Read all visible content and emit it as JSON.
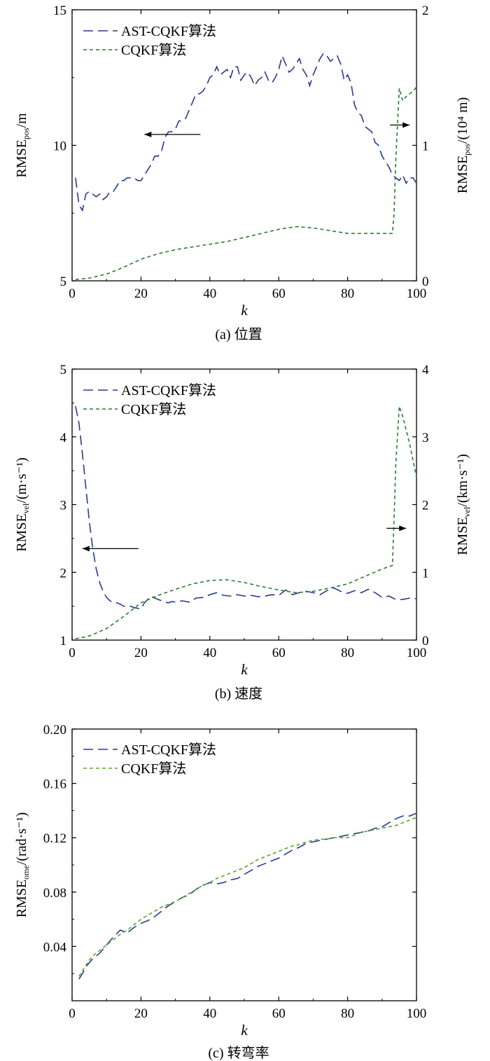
{
  "chart_data": [
    {
      "id": "a",
      "type": "line",
      "caption": "(a) 位置",
      "xlabel": "k",
      "xlim": [
        0,
        100
      ],
      "xticks": [
        0,
        20,
        40,
        60,
        80,
        100
      ],
      "y_left": {
        "label_main": "RMSE",
        "label_sub": "pos",
        "label_tail": "/m",
        "lim": [
          5,
          15
        ],
        "ticks": [
          5,
          10,
          15
        ]
      },
      "y_right": {
        "label_main": "RMSE",
        "label_sub": "pos",
        "label_tail": "/(10⁴ m)",
        "lim": [
          0,
          2
        ],
        "ticks": [
          0,
          1,
          2
        ]
      },
      "legend": [
        "AST-CQKF算法",
        "CQKF算法"
      ],
      "series": [
        {
          "name": "AST-CQKF算法",
          "axis": "left",
          "color": "#2b3990",
          "dash": "14,7",
          "x": [
            1,
            2,
            3,
            4,
            5,
            6,
            7,
            8,
            9,
            10,
            11,
            12,
            13,
            14,
            15,
            16,
            17,
            18,
            19,
            20,
            21,
            22,
            23,
            24,
            25,
            26,
            27,
            28,
            29,
            30,
            31,
            32,
            33,
            34,
            35,
            36,
            37,
            38,
            39,
            40,
            41,
            42,
            43,
            44,
            45,
            46,
            47,
            48,
            49,
            50,
            51,
            52,
            53,
            54,
            55,
            56,
            57,
            58,
            59,
            60,
            61,
            62,
            63,
            64,
            65,
            66,
            67,
            68,
            69,
            70,
            71,
            72,
            73,
            74,
            75,
            76,
            77,
            78,
            79,
            80,
            81,
            82,
            83,
            84,
            85,
            86,
            87,
            88,
            89,
            90,
            91,
            92,
            93,
            94,
            95,
            96,
            97,
            98,
            99,
            100
          ],
          "values": [
            8.8,
            7.8,
            7.6,
            8.2,
            8.3,
            8.2,
            8.1,
            8.2,
            8.0,
            8.1,
            8.3,
            8.3,
            8.5,
            8.7,
            8.7,
            8.8,
            8.8,
            8.8,
            8.7,
            8.7,
            8.9,
            9.1,
            9.3,
            9.6,
            9.6,
            9.8,
            10.3,
            10.5,
            10.5,
            10.6,
            10.9,
            10.9,
            11.0,
            11.3,
            11.6,
            11.9,
            11.9,
            12.0,
            12.2,
            12.5,
            12.6,
            12.9,
            12.6,
            12.7,
            12.8,
            12.5,
            12.9,
            12.9,
            12.4,
            12.6,
            12.7,
            12.5,
            12.2,
            12.4,
            12.5,
            12.7,
            12.4,
            12.3,
            12.5,
            12.8,
            13.3,
            13.0,
            12.7,
            12.8,
            13.0,
            13.2,
            12.8,
            12.6,
            12.2,
            12.6,
            12.9,
            13.2,
            13.4,
            13.3,
            13.1,
            13.2,
            13.3,
            13.0,
            12.4,
            12.6,
            12.3,
            11.5,
            11.2,
            11.1,
            10.7,
            10.6,
            10.5,
            10.1,
            10.0,
            9.6,
            9.4,
            9.2,
            8.9,
            8.8,
            8.7,
            8.9,
            8.6,
            8.8,
            8.8,
            8.6
          ]
        },
        {
          "name": "CQKF算法",
          "axis": "right",
          "color": "#2e7d32",
          "dash": "5,4",
          "x": [
            1,
            5,
            10,
            15,
            20,
            25,
            30,
            35,
            40,
            45,
            50,
            55,
            60,
            65,
            70,
            75,
            80,
            85,
            90,
            93,
            93.5,
            94,
            95,
            96,
            97,
            98,
            99,
            100
          ],
          "values": [
            0.01,
            0.02,
            0.05,
            0.1,
            0.16,
            0.2,
            0.23,
            0.25,
            0.27,
            0.29,
            0.32,
            0.35,
            0.38,
            0.4,
            0.39,
            0.37,
            0.35,
            0.35,
            0.35,
            0.35,
            0.5,
            0.9,
            1.42,
            1.33,
            1.36,
            1.38,
            1.4,
            1.43
          ]
        }
      ],
      "annotations": [
        {
          "text": "←",
          "points_to": "left axis",
          "x": 21,
          "y": 10.4,
          "y_axis": "left"
        },
        {
          "text": "→",
          "points_to": "right axis",
          "x": 98,
          "y": 1.15,
          "y_axis": "right"
        }
      ]
    },
    {
      "id": "b",
      "type": "line",
      "caption": "(b) 速度",
      "xlabel": "k",
      "xlim": [
        0,
        100
      ],
      "xticks": [
        0,
        20,
        40,
        60,
        80,
        100
      ],
      "y_left": {
        "label_main": "RMSE",
        "label_sub": "vel",
        "label_tail": "/(m·s⁻¹)",
        "lim": [
          1,
          5
        ],
        "ticks": [
          1,
          2,
          3,
          4,
          5
        ]
      },
      "y_right": {
        "label_main": "RMSE",
        "label_sub": "vel",
        "label_tail": "/(km·s⁻¹)",
        "lim": [
          0,
          4
        ],
        "ticks": [
          0,
          1,
          2,
          3,
          4
        ]
      },
      "legend": [
        "AST-CQKF算法",
        "CQKF算法"
      ],
      "series": [
        {
          "name": "AST-CQKF算法",
          "axis": "left",
          "color": "#2b3990",
          "dash": "14,7",
          "x": [
            1,
            2,
            3,
            4,
            5,
            6,
            7,
            8,
            9,
            10,
            11,
            12,
            13,
            14,
            15,
            16,
            17,
            18,
            19,
            20,
            21,
            22,
            23,
            24,
            25,
            26,
            27,
            28,
            29,
            30,
            32,
            34,
            36,
            38,
            40,
            42,
            44,
            46,
            48,
            50,
            52,
            54,
            56,
            58,
            60,
            62,
            64,
            66,
            68,
            70,
            72,
            74,
            76,
            78,
            80,
            82,
            84,
            86,
            88,
            90,
            92,
            94,
            96,
            98,
            100
          ],
          "values": [
            4.45,
            4.2,
            3.75,
            3.25,
            2.75,
            2.35,
            2.05,
            1.85,
            1.72,
            1.63,
            1.58,
            1.55,
            1.55,
            1.53,
            1.5,
            1.49,
            1.5,
            1.48,
            1.47,
            1.46,
            1.55,
            1.6,
            1.65,
            1.62,
            1.6,
            1.58,
            1.56,
            1.55,
            1.57,
            1.56,
            1.58,
            1.56,
            1.62,
            1.63,
            1.67,
            1.7,
            1.66,
            1.65,
            1.67,
            1.65,
            1.66,
            1.64,
            1.65,
            1.67,
            1.66,
            1.74,
            1.67,
            1.7,
            1.72,
            1.7,
            1.67,
            1.73,
            1.77,
            1.72,
            1.69,
            1.73,
            1.7,
            1.75,
            1.7,
            1.63,
            1.65,
            1.6,
            1.6,
            1.62,
            1.61
          ]
        },
        {
          "name": "CQKF算法",
          "axis": "right",
          "color": "#2e7d32",
          "dash": "5,4",
          "x": [
            1,
            5,
            10,
            15,
            20,
            25,
            30,
            35,
            40,
            45,
            50,
            55,
            60,
            65,
            70,
            75,
            80,
            85,
            90,
            93,
            93.5,
            94,
            95,
            96,
            97,
            98,
            99,
            100
          ],
          "values": [
            0.02,
            0.06,
            0.17,
            0.35,
            0.55,
            0.66,
            0.75,
            0.83,
            0.88,
            0.89,
            0.85,
            0.79,
            0.74,
            0.7,
            0.72,
            0.77,
            0.83,
            0.94,
            1.05,
            1.1,
            1.8,
            2.6,
            3.45,
            3.3,
            3.1,
            2.9,
            2.65,
            2.4
          ]
        }
      ],
      "annotations": [
        {
          "text": "←",
          "points_to": "left axis",
          "x": 3,
          "y": 2.35,
          "y_axis": "left"
        },
        {
          "text": "→",
          "points_to": "right axis",
          "x": 97,
          "y": 1.65,
          "y_axis": "right"
        }
      ]
    },
    {
      "id": "c",
      "type": "line",
      "caption": "(c) 转弯率",
      "xlabel": "k",
      "xlim": [
        0,
        100
      ],
      "xticks": [
        0,
        20,
        40,
        60,
        80,
        100
      ],
      "y_left": {
        "label_main": "RMSE",
        "label_sub": "ome",
        "label_tail": "/(rad·s⁻¹)",
        "lim": [
          0,
          0.2
        ],
        "ticks": [
          0.04,
          0.08,
          0.12,
          0.16,
          0.2
        ],
        "tick_labels": [
          "0.04",
          "0.08",
          "0.12",
          "0.16",
          "0.20"
        ]
      },
      "legend": [
        "AST-CQKF算法",
        "CQKF算法"
      ],
      "series": [
        {
          "name": "AST-CQKF算法",
          "axis": "left",
          "color": "#2b3990",
          "dash": "14,7",
          "x": [
            2,
            3,
            4,
            5,
            6,
            7,
            8,
            9,
            10,
            12,
            14,
            16,
            18,
            20,
            22,
            24,
            26,
            28,
            30,
            32,
            34,
            36,
            38,
            40,
            42,
            44,
            46,
            48,
            50,
            52,
            54,
            56,
            58,
            60,
            62,
            64,
            66,
            68,
            70,
            72,
            74,
            76,
            78,
            80,
            82,
            84,
            86,
            88,
            90,
            92,
            94,
            96,
            98,
            100
          ],
          "values": [
            0.016,
            0.02,
            0.025,
            0.028,
            0.031,
            0.033,
            0.035,
            0.038,
            0.041,
            0.047,
            0.052,
            0.05,
            0.054,
            0.057,
            0.059,
            0.062,
            0.066,
            0.07,
            0.073,
            0.076,
            0.078,
            0.082,
            0.085,
            0.087,
            0.086,
            0.087,
            0.089,
            0.09,
            0.093,
            0.096,
            0.099,
            0.101,
            0.103,
            0.105,
            0.108,
            0.111,
            0.113,
            0.116,
            0.117,
            0.118,
            0.119,
            0.12,
            0.121,
            0.122,
            0.123,
            0.124,
            0.125,
            0.127,
            0.128,
            0.131,
            0.134,
            0.136,
            0.136,
            0.138
          ]
        },
        {
          "name": "CQKF算法",
          "axis": "left",
          "color": "#5ba829",
          "dash": "5,4",
          "x": [
            2,
            3,
            4,
            5,
            6,
            7,
            8,
            9,
            10,
            12,
            14,
            16,
            18,
            20,
            22,
            24,
            26,
            28,
            30,
            32,
            34,
            36,
            38,
            40,
            42,
            44,
            46,
            48,
            50,
            52,
            54,
            56,
            58,
            60,
            62,
            64,
            66,
            68,
            70,
            72,
            74,
            76,
            78,
            80,
            82,
            84,
            86,
            88,
            90,
            92,
            94,
            96,
            98,
            100
          ],
          "values": [
            0.018,
            0.022,
            0.026,
            0.03,
            0.033,
            0.035,
            0.037,
            0.039,
            0.041,
            0.045,
            0.049,
            0.052,
            0.056,
            0.06,
            0.063,
            0.066,
            0.069,
            0.071,
            0.073,
            0.076,
            0.079,
            0.082,
            0.085,
            0.087,
            0.09,
            0.092,
            0.094,
            0.096,
            0.098,
            0.101,
            0.104,
            0.106,
            0.108,
            0.11,
            0.112,
            0.114,
            0.115,
            0.117,
            0.118,
            0.119,
            0.119,
            0.12,
            0.12,
            0.12,
            0.122,
            0.124,
            0.125,
            0.126,
            0.127,
            0.128,
            0.129,
            0.131,
            0.133,
            0.135
          ]
        }
      ],
      "annotations": []
    }
  ]
}
